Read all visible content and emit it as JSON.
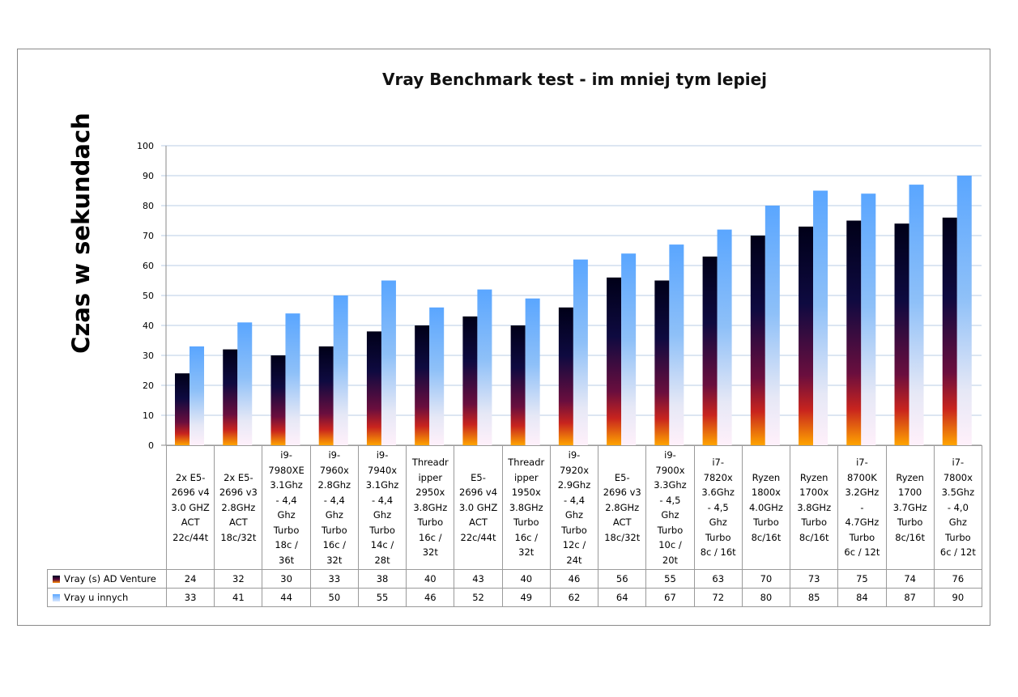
{
  "chart_data": {
    "type": "bar",
    "title": "Vray Benchmark test - im mniej tym lepiej",
    "ylabel": "Czas w sekundach",
    "xlabel": "",
    "ylim": [
      0,
      100
    ],
    "yticks": [
      0,
      10,
      20,
      30,
      40,
      50,
      60,
      70,
      80,
      90,
      100
    ],
    "grid": true,
    "legend": "data-table",
    "categories": [
      "2x E5-\n2696 v4\n3.0 GHZ\nACT\n22c/44t",
      "2x E5-\n2696 v3\n2.8GHz\nACT\n18c/32t",
      "i9-\n7980XE\n3.1Ghz\n- 4,4\nGhz\nTurbo\n18c /\n36t",
      "i9-\n7960x\n2.8Ghz\n- 4,4\nGhz\nTurbo\n16c /\n32t",
      "i9-\n7940x\n3.1Ghz\n- 4,4\nGhz\nTurbo\n14c /\n28t",
      "Threadr\nipper\n2950x\n3.8GHz\nTurbo\n16c /\n32t",
      "E5-\n2696 v4\n3.0 GHZ\nACT\n22c/44t",
      "Threadr\nipper\n1950x\n3.8GHz\nTurbo\n16c /\n32t",
      "i9-\n7920x\n2.9Ghz\n- 4,4\nGhz\nTurbo\n12c /\n24t",
      "E5-\n2696 v3\n2.8GHz\nACT\n18c/32t",
      "i9-\n7900x\n3.3Ghz\n- 4,5\nGhz\nTurbo\n10c /\n20t",
      "i7-\n7820x\n3.6Ghz\n- 4,5\nGhz\nTurbo\n8c / 16t",
      "Ryzen\n1800x\n4.0GHz\nTurbo\n8c/16t",
      "Ryzen\n1700x\n3.8GHz\nTurbo\n8c/16t",
      "i7-\n8700K\n3.2GHz\n-\n4.7GHz\nTurbo\n6c / 12t",
      "Ryzen\n1700\n3.7GHz\nTurbo\n8c/16t",
      "i7-\n7800x\n3.5Ghz\n- 4,0\nGhz\nTurbo\n6c / 12t"
    ],
    "series": [
      {
        "name": "Vray (s) AD Venture",
        "color": "#2a0a3a",
        "values": [
          24,
          32,
          30,
          33,
          38,
          40,
          43,
          40,
          46,
          56,
          55,
          63,
          70,
          73,
          75,
          74,
          76
        ]
      },
      {
        "name": "Vray u innych",
        "color": "#5aa6ff",
        "values": [
          33,
          41,
          44,
          50,
          55,
          46,
          52,
          49,
          62,
          64,
          67,
          72,
          80,
          85,
          84,
          87,
          90
        ]
      }
    ]
  }
}
